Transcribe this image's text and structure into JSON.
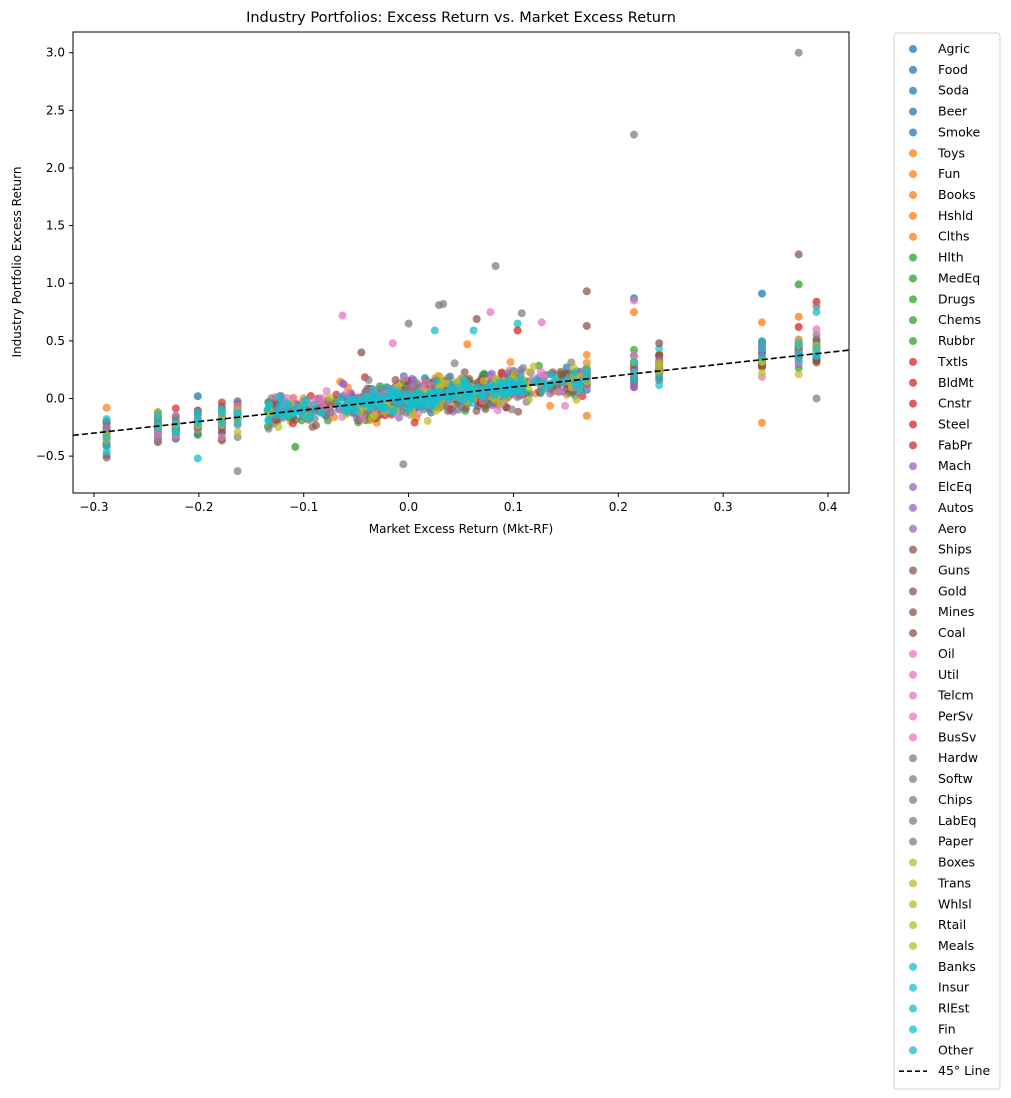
{
  "chart_data": {
    "type": "scatter",
    "title": "Industry Portfolios: Excess Return vs. Market Excess Return",
    "xlabel": "Market Excess Return (Mkt-RF)",
    "ylabel": "Industry Portfolio Excess Return",
    "xlim": [
      -0.32,
      0.42
    ],
    "ylim": [
      -0.82,
      3.18
    ],
    "x_ticks": [
      -0.3,
      -0.2,
      -0.1,
      0.0,
      0.1,
      0.2,
      0.3,
      0.4
    ],
    "x_tick_labels": [
      "−0.3",
      "−0.2",
      "−0.1",
      "0.0",
      "0.1",
      "0.2",
      "0.3",
      "0.4"
    ],
    "y_ticks": [
      -0.5,
      0.0,
      0.5,
      1.0,
      1.5,
      2.0,
      2.5,
      3.0
    ],
    "y_tick_labels": [
      "−0.5",
      "0.0",
      "0.5",
      "1.0",
      "1.5",
      "2.0",
      "2.5",
      "3.0"
    ],
    "grid": false,
    "legend_position": "outside-right",
    "color_groups": [
      {
        "color": "#1f77b4",
        "series": [
          "Agric",
          "Food",
          "Soda",
          "Beer",
          "Smoke"
        ]
      },
      {
        "color": "#ff7f0e",
        "series": [
          "Toys",
          "Fun",
          "Books",
          "Hshld",
          "Clths"
        ]
      },
      {
        "color": "#2ca02c",
        "series": [
          "Hlth",
          "MedEq",
          "Drugs",
          "Chems",
          "Rubbr"
        ]
      },
      {
        "color": "#d62728",
        "series": [
          "Txtls",
          "BldMt",
          "Cnstr",
          "Steel",
          "FabPr"
        ]
      },
      {
        "color": "#9467bd",
        "series": [
          "Mach",
          "ElcEq",
          "Autos",
          "Aero"
        ]
      },
      {
        "color": "#8c564b",
        "series": [
          "Ships",
          "Guns",
          "Gold",
          "Mines",
          "Coal"
        ]
      },
      {
        "color": "#e377c2",
        "series": [
          "Oil",
          "Util",
          "Telcm",
          "PerSv",
          "BusSv"
        ]
      },
      {
        "color": "#7f7f7f",
        "series": [
          "Hardw",
          "Softw",
          "Chips",
          "LabEq",
          "Paper"
        ]
      },
      {
        "color": "#bcbd22",
        "series": [
          "Boxes",
          "Trans",
          "Whlsl",
          "Rtail",
          "Meals"
        ]
      },
      {
        "color": "#17becf",
        "series": [
          "Banks",
          "Insur",
          "RlEst",
          "Fin",
          "Other"
        ]
      }
    ],
    "reference_line": {
      "label": "45° Line",
      "slope": 1,
      "intercept": 0,
      "style": "dashed",
      "color": "#000000"
    },
    "highlight_points": [
      {
        "x": 0.372,
        "y": 3.0,
        "color": "#7f7f7f"
      },
      {
        "x": 0.215,
        "y": 2.29,
        "color": "#7f7f7f"
      },
      {
        "x": 0.372,
        "y": 1.25,
        "color": "#8c564b"
      },
      {
        "x": 0.083,
        "y": 1.15,
        "color": "#7f7f7f"
      },
      {
        "x": 0.372,
        "y": 0.99,
        "color": "#2ca02c"
      },
      {
        "x": 0.17,
        "y": 0.93,
        "color": "#8c564b"
      },
      {
        "x": 0.337,
        "y": 0.91,
        "color": "#1f77b4"
      },
      {
        "x": 0.215,
        "y": 0.87,
        "color": "#1f77b4"
      },
      {
        "x": 0.215,
        "y": 0.85,
        "color": "#e377c2"
      },
      {
        "x": 0.389,
        "y": 0.84,
        "color": "#d62728"
      },
      {
        "x": 0.389,
        "y": 0.8,
        "color": "#7f7f7f"
      },
      {
        "x": 0.389,
        "y": 0.75,
        "color": "#17becf"
      },
      {
        "x": 0.033,
        "y": 0.82,
        "color": "#7f7f7f"
      },
      {
        "x": 0.029,
        "y": 0.81,
        "color": "#7f7f7f"
      },
      {
        "x": 0.078,
        "y": 0.75,
        "color": "#e377c2"
      },
      {
        "x": 0.215,
        "y": 0.75,
        "color": "#ff7f0e"
      },
      {
        "x": 0.108,
        "y": 0.74,
        "color": "#7f7f7f"
      },
      {
        "x": -0.063,
        "y": 0.72,
        "color": "#e377c2"
      },
      {
        "x": 0.065,
        "y": 0.69,
        "color": "#8c564b"
      },
      {
        "x": 0.337,
        "y": 0.66,
        "color": "#ff7f0e"
      },
      {
        "x": 0.104,
        "y": 0.65,
        "color": "#17becf"
      },
      {
        "x": 0.0,
        "y": 0.65,
        "color": "#7f7f7f"
      },
      {
        "x": 0.127,
        "y": 0.66,
        "color": "#e377c2"
      },
      {
        "x": 0.17,
        "y": 0.63,
        "color": "#8c564b"
      },
      {
        "x": 0.104,
        "y": 0.59,
        "color": "#d62728"
      },
      {
        "x": 0.025,
        "y": 0.59,
        "color": "#17becf"
      },
      {
        "x": 0.062,
        "y": 0.59,
        "color": "#17becf"
      },
      {
        "x": 0.372,
        "y": 0.71,
        "color": "#ff7f0e"
      },
      {
        "x": 0.372,
        "y": 0.62,
        "color": "#d62728"
      },
      {
        "x": 0.389,
        "y": 0.6,
        "color": "#e377c2"
      },
      {
        "x": 0.239,
        "y": 0.48,
        "color": "#8c564b"
      },
      {
        "x": 0.337,
        "y": -0.21,
        "color": "#ff7f0e"
      },
      {
        "x": 0.389,
        "y": 0.0,
        "color": "#7f7f7f"
      },
      {
        "x": -0.163,
        "y": -0.63,
        "color": "#7f7f7f"
      },
      {
        "x": -0.005,
        "y": -0.57,
        "color": "#7f7f7f"
      },
      {
        "x": -0.201,
        "y": -0.52,
        "color": "#17becf"
      },
      {
        "x": -0.288,
        "y": -0.08,
        "color": "#ff7f0e"
      },
      {
        "x": -0.288,
        "y": -0.46,
        "color": "#17becf"
      },
      {
        "x": -0.108,
        "y": -0.42,
        "color": "#2ca02c"
      },
      {
        "x": 0.17,
        "y": -0.15,
        "color": "#ff7f0e"
      },
      {
        "x": -0.201,
        "y": 0.02,
        "color": "#1f77b4"
      },
      {
        "x": 0.056,
        "y": 0.47,
        "color": "#ff7f0e"
      },
      {
        "x": -0.015,
        "y": 0.48,
        "color": "#e377c2"
      },
      {
        "x": -0.045,
        "y": 0.4,
        "color": "#8c564b"
      }
    ],
    "vertical_clusters_x": [
      -0.288,
      -0.239,
      -0.222,
      -0.201,
      -0.178,
      -0.163,
      0.17,
      0.215,
      0.239,
      0.337,
      0.372,
      0.389
    ]
  }
}
